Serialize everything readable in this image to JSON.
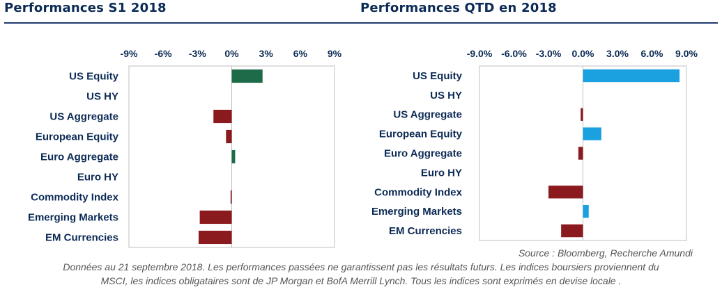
{
  "titles": {
    "left": "Performances S1 2018",
    "right": "Performances QTD en 2018"
  },
  "source": "Source : Bloomberg, Recherche Amundi",
  "note_line1": "Données au 21 septembre 2018. Les performances passées ne garantissent pas les résultats futurs. Les indices boursiers proviennent du",
  "note_line2": "MSCI, les indices obligataires sont de JP Morgan et BofA Merrill Lynch. Tous les indices sont exprimés en devise locale .",
  "colors": {
    "positive_left": "#1e6b4a",
    "negative": "#8b1a1f",
    "positive_right": "#1ba0e0",
    "axis_text": "#0b2a55"
  },
  "chart_data": [
    {
      "type": "bar",
      "orientation": "horizontal",
      "title": "Performances S1 2018",
      "categories": [
        "US Equity",
        "US HY",
        "US Aggregate",
        "European Equity",
        "Euro Aggregate",
        "Euro HY",
        "Commodity Index",
        "Emerging Markets",
        "EM Currencies"
      ],
      "values": [
        2.7,
        0.0,
        -1.6,
        -0.5,
        0.3,
        0.0,
        -0.1,
        -2.8,
        -2.9
      ],
      "xlim": [
        -9,
        9
      ],
      "ticks": [
        -9,
        -6,
        -3,
        0,
        3,
        6,
        9
      ],
      "tick_labels": [
        "-9%",
        "-6%",
        "-3%",
        "0%",
        "3%",
        "6%",
        "9%"
      ],
      "tick_position": "top"
    },
    {
      "type": "bar",
      "orientation": "horizontal",
      "title": "Performances QTD en 2018",
      "categories": [
        "US Equity",
        "US HY",
        "US Aggregate",
        "European Equity",
        "Euro Aggregate",
        "Euro HY",
        "Commodity Index",
        "Emerging Markets",
        "EM Currencies"
      ],
      "values": [
        8.4,
        0.0,
        -0.2,
        1.6,
        -0.4,
        0.0,
        -3.0,
        0.5,
        -1.9
      ],
      "xlim": [
        -9,
        9
      ],
      "ticks": [
        -9,
        -6,
        -3,
        0,
        3,
        6,
        9
      ],
      "tick_labels": [
        "-9.0%",
        "-6.0%",
        "-3.0%",
        "0.0%",
        "3.0%",
        "6.0%",
        "9.0%"
      ],
      "tick_position": "top"
    }
  ]
}
